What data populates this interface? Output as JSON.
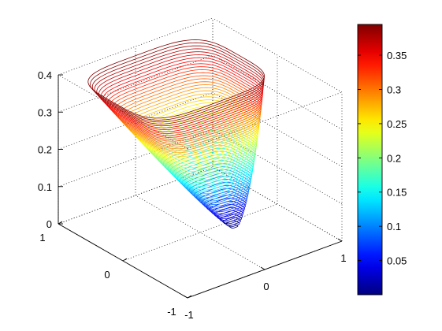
{
  "chart_data": {
    "type": "surface3d-contour",
    "title": "",
    "xlabel": "",
    "ylabel": "",
    "zlabel": "",
    "xlim": [
      -1,
      1
    ],
    "ylim": [
      -1,
      1
    ],
    "zlim": [
      0,
      0.4
    ],
    "x_ticks": [
      "-1",
      "0",
      "1"
    ],
    "y_ticks": [
      "-1",
      "0",
      "1"
    ],
    "z_ticks": [
      "0",
      "0.1",
      "0.2",
      "0.3",
      "0.4"
    ],
    "grid": true,
    "colormap": "jet",
    "colorbar": {
      "range": [
        0.0,
        0.395
      ],
      "ticks": [
        "0.05",
        "0.1",
        "0.15",
        "0.2",
        "0.25",
        "0.3",
        "0.35"
      ],
      "placement": "right"
    },
    "contour_levels": 60,
    "shape": "funnel: superellipse cross-section, apex near (0.35, -0.1) at z=0, rounded-rectangle rim at z≈0.39",
    "colors": {
      "low": "#00008f",
      "mid": "#7fff7f",
      "high": "#800000"
    }
  }
}
